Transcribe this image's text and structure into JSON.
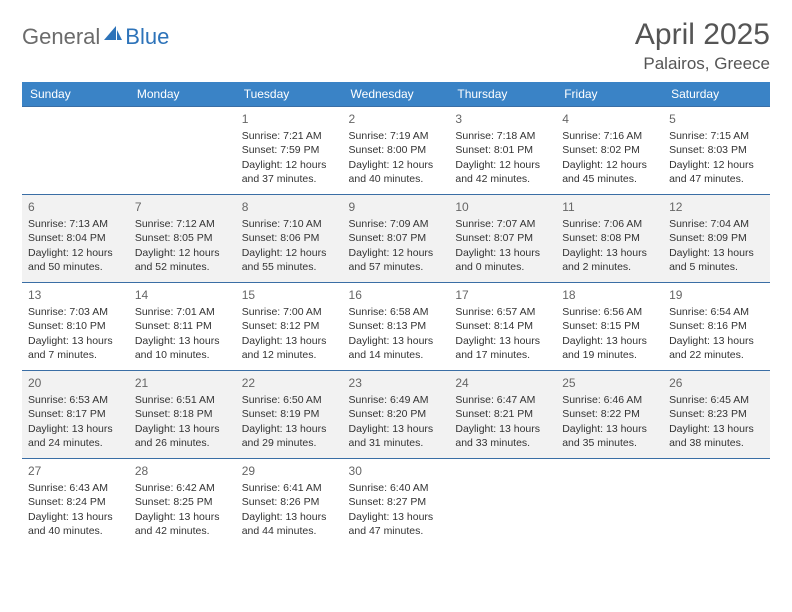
{
  "logo": {
    "text1": "General",
    "text2": "Blue"
  },
  "title": "April 2025",
  "location": "Palairos, Greece",
  "colors": {
    "header_bg": "#3a83c6",
    "header_text": "#ffffff",
    "border": "#3a6ea5",
    "alt_row_bg": "#f2f2f2",
    "title_color": "#555555",
    "logo_gray": "#6b6b6b",
    "logo_blue": "#2d73b9",
    "daynum_color": "#666666",
    "cell_text": "#333333"
  },
  "weekdays": [
    "Sunday",
    "Monday",
    "Tuesday",
    "Wednesday",
    "Thursday",
    "Friday",
    "Saturday"
  ],
  "weeks": [
    {
      "alt": false,
      "days": [
        {
          "num": "",
          "sunrise": "",
          "sunset": "",
          "daylight": ""
        },
        {
          "num": "",
          "sunrise": "",
          "sunset": "",
          "daylight": ""
        },
        {
          "num": "1",
          "sunrise": "Sunrise: 7:21 AM",
          "sunset": "Sunset: 7:59 PM",
          "daylight": "Daylight: 12 hours and 37 minutes."
        },
        {
          "num": "2",
          "sunrise": "Sunrise: 7:19 AM",
          "sunset": "Sunset: 8:00 PM",
          "daylight": "Daylight: 12 hours and 40 minutes."
        },
        {
          "num": "3",
          "sunrise": "Sunrise: 7:18 AM",
          "sunset": "Sunset: 8:01 PM",
          "daylight": "Daylight: 12 hours and 42 minutes."
        },
        {
          "num": "4",
          "sunrise": "Sunrise: 7:16 AM",
          "sunset": "Sunset: 8:02 PM",
          "daylight": "Daylight: 12 hours and 45 minutes."
        },
        {
          "num": "5",
          "sunrise": "Sunrise: 7:15 AM",
          "sunset": "Sunset: 8:03 PM",
          "daylight": "Daylight: 12 hours and 47 minutes."
        }
      ]
    },
    {
      "alt": true,
      "days": [
        {
          "num": "6",
          "sunrise": "Sunrise: 7:13 AM",
          "sunset": "Sunset: 8:04 PM",
          "daylight": "Daylight: 12 hours and 50 minutes."
        },
        {
          "num": "7",
          "sunrise": "Sunrise: 7:12 AM",
          "sunset": "Sunset: 8:05 PM",
          "daylight": "Daylight: 12 hours and 52 minutes."
        },
        {
          "num": "8",
          "sunrise": "Sunrise: 7:10 AM",
          "sunset": "Sunset: 8:06 PM",
          "daylight": "Daylight: 12 hours and 55 minutes."
        },
        {
          "num": "9",
          "sunrise": "Sunrise: 7:09 AM",
          "sunset": "Sunset: 8:07 PM",
          "daylight": "Daylight: 12 hours and 57 minutes."
        },
        {
          "num": "10",
          "sunrise": "Sunrise: 7:07 AM",
          "sunset": "Sunset: 8:07 PM",
          "daylight": "Daylight: 13 hours and 0 minutes."
        },
        {
          "num": "11",
          "sunrise": "Sunrise: 7:06 AM",
          "sunset": "Sunset: 8:08 PM",
          "daylight": "Daylight: 13 hours and 2 minutes."
        },
        {
          "num": "12",
          "sunrise": "Sunrise: 7:04 AM",
          "sunset": "Sunset: 8:09 PM",
          "daylight": "Daylight: 13 hours and 5 minutes."
        }
      ]
    },
    {
      "alt": false,
      "days": [
        {
          "num": "13",
          "sunrise": "Sunrise: 7:03 AM",
          "sunset": "Sunset: 8:10 PM",
          "daylight": "Daylight: 13 hours and 7 minutes."
        },
        {
          "num": "14",
          "sunrise": "Sunrise: 7:01 AM",
          "sunset": "Sunset: 8:11 PM",
          "daylight": "Daylight: 13 hours and 10 minutes."
        },
        {
          "num": "15",
          "sunrise": "Sunrise: 7:00 AM",
          "sunset": "Sunset: 8:12 PM",
          "daylight": "Daylight: 13 hours and 12 minutes."
        },
        {
          "num": "16",
          "sunrise": "Sunrise: 6:58 AM",
          "sunset": "Sunset: 8:13 PM",
          "daylight": "Daylight: 13 hours and 14 minutes."
        },
        {
          "num": "17",
          "sunrise": "Sunrise: 6:57 AM",
          "sunset": "Sunset: 8:14 PM",
          "daylight": "Daylight: 13 hours and 17 minutes."
        },
        {
          "num": "18",
          "sunrise": "Sunrise: 6:56 AM",
          "sunset": "Sunset: 8:15 PM",
          "daylight": "Daylight: 13 hours and 19 minutes."
        },
        {
          "num": "19",
          "sunrise": "Sunrise: 6:54 AM",
          "sunset": "Sunset: 8:16 PM",
          "daylight": "Daylight: 13 hours and 22 minutes."
        }
      ]
    },
    {
      "alt": true,
      "days": [
        {
          "num": "20",
          "sunrise": "Sunrise: 6:53 AM",
          "sunset": "Sunset: 8:17 PM",
          "daylight": "Daylight: 13 hours and 24 minutes."
        },
        {
          "num": "21",
          "sunrise": "Sunrise: 6:51 AM",
          "sunset": "Sunset: 8:18 PM",
          "daylight": "Daylight: 13 hours and 26 minutes."
        },
        {
          "num": "22",
          "sunrise": "Sunrise: 6:50 AM",
          "sunset": "Sunset: 8:19 PM",
          "daylight": "Daylight: 13 hours and 29 minutes."
        },
        {
          "num": "23",
          "sunrise": "Sunrise: 6:49 AM",
          "sunset": "Sunset: 8:20 PM",
          "daylight": "Daylight: 13 hours and 31 minutes."
        },
        {
          "num": "24",
          "sunrise": "Sunrise: 6:47 AM",
          "sunset": "Sunset: 8:21 PM",
          "daylight": "Daylight: 13 hours and 33 minutes."
        },
        {
          "num": "25",
          "sunrise": "Sunrise: 6:46 AM",
          "sunset": "Sunset: 8:22 PM",
          "daylight": "Daylight: 13 hours and 35 minutes."
        },
        {
          "num": "26",
          "sunrise": "Sunrise: 6:45 AM",
          "sunset": "Sunset: 8:23 PM",
          "daylight": "Daylight: 13 hours and 38 minutes."
        }
      ]
    },
    {
      "alt": false,
      "days": [
        {
          "num": "27",
          "sunrise": "Sunrise: 6:43 AM",
          "sunset": "Sunset: 8:24 PM",
          "daylight": "Daylight: 13 hours and 40 minutes."
        },
        {
          "num": "28",
          "sunrise": "Sunrise: 6:42 AM",
          "sunset": "Sunset: 8:25 PM",
          "daylight": "Daylight: 13 hours and 42 minutes."
        },
        {
          "num": "29",
          "sunrise": "Sunrise: 6:41 AM",
          "sunset": "Sunset: 8:26 PM",
          "daylight": "Daylight: 13 hours and 44 minutes."
        },
        {
          "num": "30",
          "sunrise": "Sunrise: 6:40 AM",
          "sunset": "Sunset: 8:27 PM",
          "daylight": "Daylight: 13 hours and 47 minutes."
        },
        {
          "num": "",
          "sunrise": "",
          "sunset": "",
          "daylight": ""
        },
        {
          "num": "",
          "sunrise": "",
          "sunset": "",
          "daylight": ""
        },
        {
          "num": "",
          "sunrise": "",
          "sunset": "",
          "daylight": ""
        }
      ]
    }
  ]
}
